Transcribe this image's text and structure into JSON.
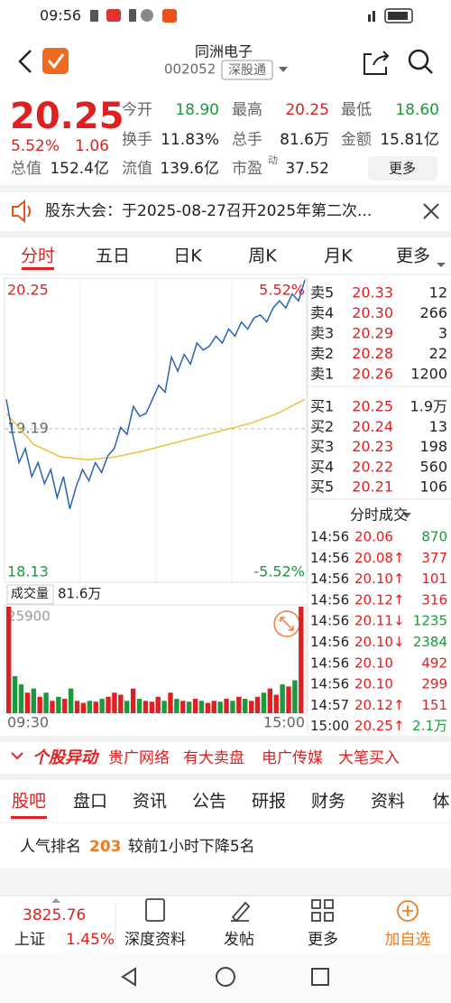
{
  "status_bar": {
    "time": "09:56"
  },
  "header": {
    "name": "同洲电子",
    "code": "002052",
    "tag": "深股通"
  },
  "quote": {
    "price": "20.25",
    "change_pct": "5.52%",
    "change": "1.06",
    "stats": [
      {
        "label": "今开",
        "value": "18.90",
        "color": "#1a9a3c"
      },
      {
        "label": "最高",
        "value": "20.25",
        "color": "#e02020"
      },
      {
        "label": "最低",
        "value": "18.60",
        "color": "#1a9a3c"
      },
      {
        "label": "换手",
        "value": "11.83%",
        "color": "#222222"
      },
      {
        "label": "总手",
        "value": "81.6万",
        "color": "#222222"
      },
      {
        "label": "金额",
        "value": "15.81亿",
        "color": "#222222"
      },
      {
        "label": "总值",
        "value": "152.4亿",
        "color": "#222222"
      },
      {
        "label": "流值",
        "value": "139.6亿",
        "color": "#222222"
      },
      {
        "label": "市盈",
        "sup": "动",
        "value": "37.52",
        "color": "#222222"
      }
    ],
    "more": "更多"
  },
  "notice": "股东大会：于2025-08-27召开2025年第二次...",
  "chart_tabs": [
    "分时",
    "五日",
    "日K",
    "周K",
    "月K",
    "更多"
  ],
  "intraday": {
    "ylim": [
      18.13,
      20.25
    ],
    "yticks": [
      18.13,
      19.19,
      20.25
    ],
    "pct_top": "5.52%",
    "pct_bottom": "-5.52%",
    "price_color": "#2a62b0",
    "avg_color": "#e8c23a",
    "price": [
      19.4,
      19.15,
      18.95,
      19.05,
      18.85,
      18.95,
      18.8,
      18.9,
      18.7,
      18.85,
      18.62,
      18.78,
      18.9,
      18.82,
      18.95,
      18.88,
      19.0,
      19.05,
      19.2,
      19.15,
      19.35,
      19.28,
      19.3,
      19.4,
      19.5,
      19.45,
      19.7,
      19.6,
      19.72,
      19.65,
      19.8,
      19.75,
      19.78,
      19.85,
      19.8,
      19.9,
      19.85,
      19.95,
      19.9,
      19.98,
      20.0,
      19.95,
      20.05,
      20.1,
      20.05,
      20.15,
      20.1,
      20.25
    ],
    "avg": [
      19.3,
      19.08,
      18.99,
      18.97,
      18.99,
      19.03,
      19.08,
      19.13,
      19.18,
      19.23,
      19.3,
      19.4
    ],
    "volume_label": "成交量",
    "volume_total": "81.6万",
    "volume_ylim": [
      0,
      25900
    ],
    "volume_ticks": [
      25900
    ],
    "volume": [
      25900,
      9000,
      7000,
      5000,
      6000,
      4000,
      5000,
      3000,
      4000,
      3500,
      6000,
      3000,
      2500,
      3000,
      2800,
      3500,
      4000,
      5000,
      4500,
      3000,
      6000,
      3500,
      3000,
      2800,
      4000,
      3000,
      5000,
      3500,
      3000,
      2800,
      3500,
      3000,
      2500,
      3000,
      2800,
      3500,
      3000,
      4000,
      3500,
      3000,
      4000,
      5000,
      6000,
      4500,
      7000,
      6500,
      8000,
      25900
    ],
    "x_labels": [
      "09:30",
      "15:00"
    ]
  },
  "order_book": {
    "asks": [
      {
        "label": "卖5",
        "price": "20.33",
        "volume": "12"
      },
      {
        "label": "卖4",
        "price": "20.30",
        "volume": "266"
      },
      {
        "label": "卖3",
        "price": "20.29",
        "volume": "3"
      },
      {
        "label": "卖2",
        "price": "20.28",
        "volume": "22"
      },
      {
        "label": "卖1",
        "price": "20.26",
        "volume": "1200"
      }
    ],
    "bids": [
      {
        "label": "买1",
        "price": "20.25",
        "volume": "1.9万"
      },
      {
        "label": "买2",
        "price": "20.24",
        "volume": "13"
      },
      {
        "label": "买3",
        "price": "20.23",
        "volume": "198"
      },
      {
        "label": "买4",
        "price": "20.22",
        "volume": "560"
      },
      {
        "label": "买5",
        "price": "20.21",
        "volume": "106"
      }
    ]
  },
  "trades": {
    "title": "分时成交",
    "rows": [
      {
        "time": "14:56",
        "price": "20.06",
        "volume": "870",
        "volume_color": "#1a9a3c"
      },
      {
        "time": "14:56",
        "price": "20.08↑",
        "volume": "377",
        "volume_color": "#e02020"
      },
      {
        "time": "14:56",
        "price": "20.10↑",
        "volume": "101",
        "volume_color": "#e02020"
      },
      {
        "time": "14:56",
        "price": "20.12↑",
        "volume": "316",
        "volume_color": "#e02020"
      },
      {
        "time": "14:56",
        "price": "20.11↓",
        "volume": "1235",
        "volume_color": "#1a9a3c"
      },
      {
        "time": "14:56",
        "price": "20.10↓",
        "volume": "2384",
        "volume_color": "#1a9a3c"
      },
      {
        "time": "14:56",
        "price": "20.10",
        "volume": "492",
        "volume_color": "#e02020"
      },
      {
        "time": "14:56",
        "price": "20.10",
        "volume": "299",
        "volume_color": "#e02020"
      },
      {
        "time": "14:57",
        "price": "20.12↑",
        "volume": "151",
        "volume_color": "#e02020"
      },
      {
        "time": "15:00",
        "price": "20.25↑",
        "volume": "2.1万",
        "volume_color": "#1a9a3c"
      }
    ]
  },
  "movers": {
    "badge": "个股异动",
    "items": [
      "贵广网络",
      "有大卖盘",
      "电广传媒",
      "大笔买入"
    ]
  },
  "info_tabs": [
    "股吧",
    "盘口",
    "资讯",
    "公告",
    "研报",
    "财务",
    "资料",
    "体"
  ],
  "popularity": {
    "label": "人气排名",
    "rank": "203",
    "note": "较前1小时下降5名"
  },
  "bottom_bar": {
    "index_value": "3825.76",
    "index_name": "上证",
    "index_pct": "1.45%",
    "buttons": [
      "深度资料",
      "发帖",
      "更多",
      "加自选"
    ]
  }
}
